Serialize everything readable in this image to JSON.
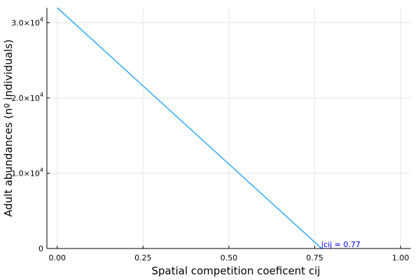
{
  "chart_data": {
    "type": "line",
    "title": "",
    "xlabel": "Spatial competition coeficent cij",
    "ylabel": "Adult abundances (nº individuals)",
    "xlim": [
      -0.03,
      1.03
    ],
    "ylim": [
      0,
      32000
    ],
    "x_ticks": [
      0.0,
      0.25,
      0.5,
      0.75,
      1.0
    ],
    "x_tick_labels": [
      "0.00",
      "0.25",
      "0.50",
      "0.75",
      "1.00"
    ],
    "y_ticks": [
      0,
      10000,
      20000,
      30000
    ],
    "y_tick_labels": [
      {
        "base": "0",
        "exp": ""
      },
      {
        "base": "1.0×10",
        "exp": "4"
      },
      {
        "base": "2.0×10",
        "exp": "4"
      },
      {
        "base": "3.0×10",
        "exp": "4"
      }
    ],
    "grid": true,
    "series": [
      {
        "color": "#009af9",
        "x": [
          0.0,
          0.77
        ],
        "y": [
          32000,
          0
        ]
      }
    ],
    "annotations": [
      {
        "text": "|cij = 0.77",
        "x": 0.77,
        "y": 0,
        "color": "#0000ff"
      }
    ]
  }
}
